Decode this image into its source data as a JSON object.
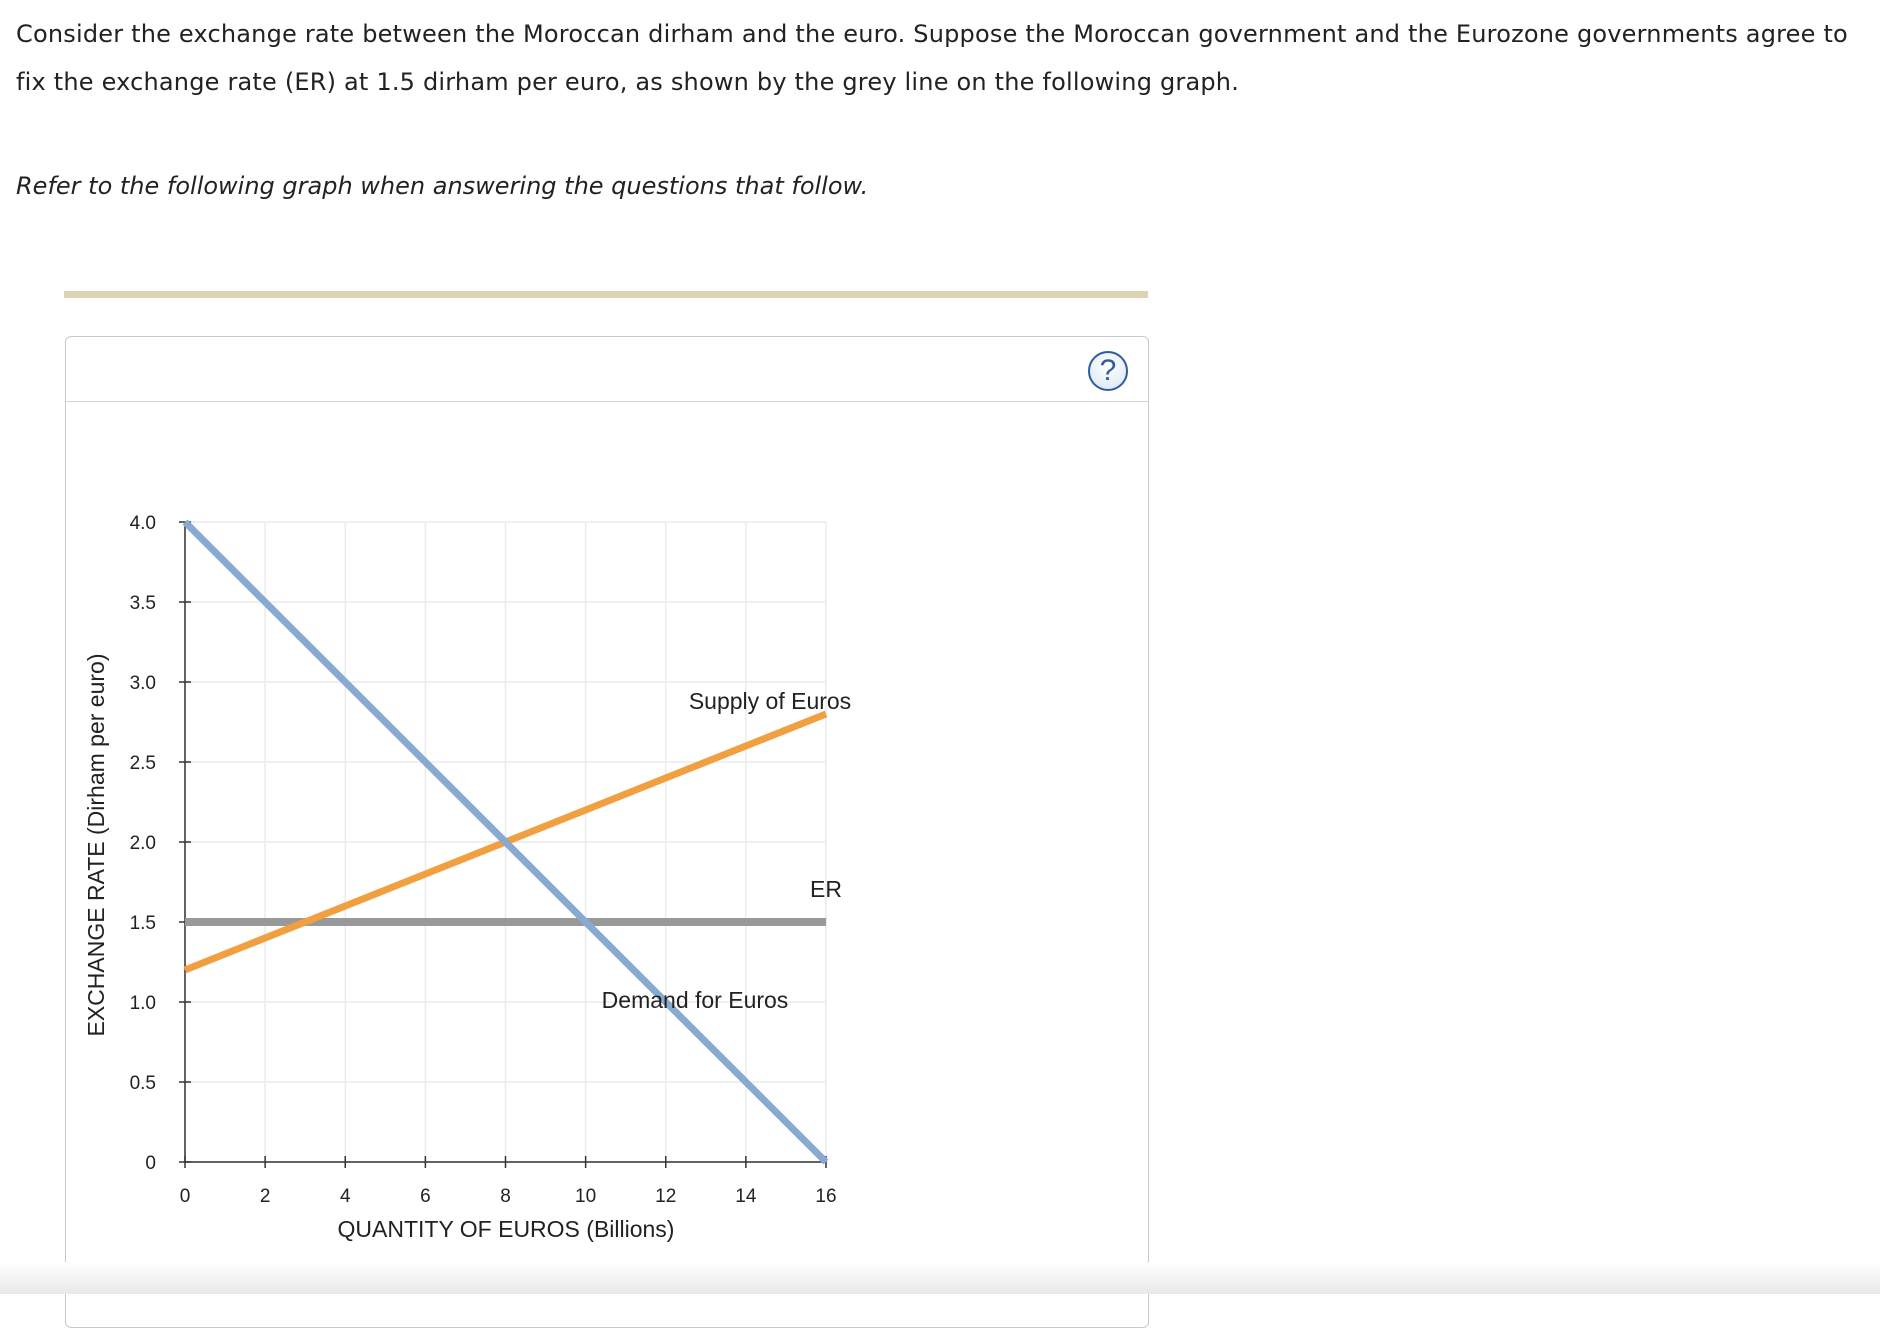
{
  "question": {
    "intro": "Consider the exchange rate between the Moroccan dirham and the euro. Suppose the Moroccan government and the Eurozone governments agree to fix the exchange rate (ER) at 1.5 dirham per euro, as shown by the grey line on the following graph.",
    "prompt": "Refer to the following graph when answering the questions that follow."
  },
  "panel": {
    "help_icon": "question-mark-icon",
    "help_symbol": "?"
  },
  "chart_data": {
    "type": "line",
    "xlabel": "QUANTITY OF EUROS (Billions)",
    "ylabel": "EXCHANGE RATE (Dirham per euro)",
    "xlim": [
      0,
      16
    ],
    "ylim": [
      0,
      4.0
    ],
    "x_ticks": [
      "0",
      "2",
      "4",
      "6",
      "8",
      "10",
      "12",
      "14",
      "16"
    ],
    "y_ticks": [
      "0",
      "0.5",
      "1.0",
      "1.5",
      "2.0",
      "2.5",
      "3.0",
      "3.5",
      "4.0"
    ],
    "grid": true,
    "series": [
      {
        "name": "Demand for Euros",
        "color": "#88aad0",
        "points": [
          [
            0,
            4.0
          ],
          [
            16,
            0.0
          ]
        ]
      },
      {
        "name": "Supply of Euros",
        "color": "#f0a040",
        "points": [
          [
            0,
            1.2
          ],
          [
            16,
            2.8
          ]
        ]
      },
      {
        "name": "ER",
        "color": "#999999",
        "points": [
          [
            0,
            1.5
          ],
          [
            16,
            1.5
          ]
        ]
      }
    ]
  }
}
